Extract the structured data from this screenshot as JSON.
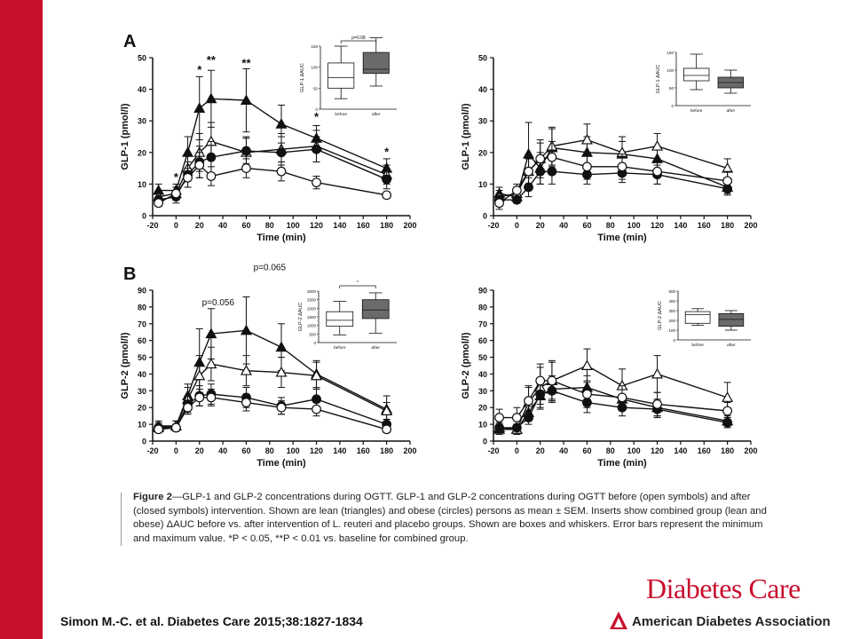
{
  "panel_a_label": "A",
  "panel_b_label": "B",
  "caption": {
    "fig": "Figure 2",
    "text": "—GLP-1 and GLP-2 concentrations during OGTT. GLP-1 and GLP-2 concentrations during OGTT before (open symbols) and after (closed symbols) intervention. Shown are lean (triangles) and obese (circles) persons as mean ± SEM. Inserts show combined group (lean and obese) ΔAUC before vs. after intervention of L. reuteri and placebo groups. Shown are boxes and whiskers. Error bars represent the minimum and maximum value. *P < 0.05, **P < 0.01 vs. baseline for combined group."
  },
  "citation": "Simon M.-C. et al. Diabetes Care 2015;38:1827-1834",
  "journal_logo": "Diabetes Care",
  "publisher": "American Diabetes Association",
  "colors": {
    "brand_red": "#c8102e",
    "line": "#111111",
    "box_dark": "#6b6b6b"
  },
  "chart_data": [
    {
      "id": "A-left",
      "type": "line",
      "xlabel": "Time (min)",
      "ylabel": "GLP-1 (pmol/l)",
      "xlim": [
        -20,
        200
      ],
      "ylim": [
        0,
        50
      ],
      "xticks": [
        -20,
        0,
        20,
        40,
        60,
        80,
        100,
        120,
        140,
        160,
        180,
        200
      ],
      "yticks": [
        0,
        10,
        20,
        30,
        40,
        50
      ],
      "x": [
        -15,
        0,
        10,
        20,
        30,
        60,
        90,
        120,
        180
      ],
      "series": [
        {
          "marker": "triangle-closed",
          "values": [
            8,
            8,
            20,
            34,
            37,
            36.5,
            29,
            24.5,
            15
          ],
          "err": [
            2,
            2,
            5,
            10,
            9,
            10,
            6,
            4,
            3
          ]
        },
        {
          "marker": "triangle-open",
          "values": [
            6,
            7,
            15,
            20,
            23.5,
            20,
            21,
            22,
            13
          ],
          "err": [
            2,
            2,
            4,
            6,
            6,
            5,
            5,
            5,
            3
          ]
        },
        {
          "marker": "circle-closed",
          "values": [
            5,
            6,
            13,
            17,
            18.5,
            20.5,
            20,
            21,
            11.5
          ],
          "err": [
            2,
            2,
            4,
            5,
            5,
            4,
            5,
            4,
            3
          ]
        },
        {
          "marker": "circle-open",
          "values": [
            4,
            7,
            12,
            16,
            12.5,
            15,
            14,
            10.5,
            6.5
          ],
          "err": [
            1,
            2,
            3,
            4,
            3,
            3,
            3,
            2,
            1
          ]
        }
      ],
      "annotations": [
        {
          "x": 0,
          "y": 11,
          "text": "*"
        },
        {
          "x": 20,
          "y": 45,
          "text": "*"
        },
        {
          "x": 30,
          "y": 48,
          "text": "**"
        },
        {
          "x": 60,
          "y": 47,
          "text": "**"
        },
        {
          "x": 120,
          "y": 30,
          "text": "*"
        },
        {
          "x": 180,
          "y": 19,
          "text": "*"
        }
      ],
      "inset": {
        "ylabel": "GLP-1 ΔAUC",
        "ylim": [
          0,
          150
        ],
        "yticks": [
          0,
          50,
          100,
          150
        ],
        "categories": [
          "before",
          "after"
        ],
        "pvalue": "p=0.08",
        "boxes": [
          {
            "min": 25,
            "q1": 50,
            "med": 75,
            "q3": 110,
            "max": 150
          },
          {
            "min": 55,
            "q1": 85,
            "med": 95,
            "q3": 135,
            "max": 170
          }
        ]
      }
    },
    {
      "id": "A-right",
      "type": "line",
      "xlabel": "Time (min)",
      "ylabel": "GLP-1 (pmol/l)",
      "xlim": [
        -20,
        200
      ],
      "ylim": [
        0,
        50
      ],
      "xticks": [
        -20,
        0,
        20,
        40,
        60,
        80,
        100,
        120,
        140,
        160,
        180,
        200
      ],
      "yticks": [
        0,
        10,
        20,
        30,
        40,
        50
      ],
      "x": [
        -15,
        0,
        10,
        20,
        30,
        60,
        90,
        120,
        180
      ],
      "series": [
        {
          "marker": "triangle-closed",
          "values": [
            7,
            6,
            19.5,
            15,
            21.5,
            20,
            19.5,
            18,
            9
          ],
          "err": [
            2,
            2,
            10,
            5,
            6,
            5,
            4,
            4,
            2
          ]
        },
        {
          "marker": "triangle-open",
          "values": [
            6,
            7,
            14,
            18,
            22,
            24,
            20,
            22,
            15
          ],
          "err": [
            2,
            2,
            4,
            6,
            6,
            5,
            5,
            4,
            3
          ]
        },
        {
          "marker": "circle-closed",
          "values": [
            5,
            5,
            9,
            14,
            14,
            13,
            13.5,
            13,
            8.5
          ],
          "err": [
            2,
            1,
            3,
            4,
            4,
            3,
            3,
            3,
            2
          ]
        },
        {
          "marker": "circle-open",
          "values": [
            4,
            8,
            14,
            18,
            18.5,
            15.5,
            15.5,
            14,
            11
          ],
          "err": [
            2,
            2,
            4,
            5,
            5,
            4,
            4,
            4,
            3
          ]
        }
      ],
      "inset": {
        "ylabel": "GLP-1 ΔAUC",
        "ylim": [
          0,
          150
        ],
        "yticks": [
          0,
          50,
          100,
          150
        ],
        "categories": [
          "before",
          "after"
        ],
        "boxes": [
          {
            "min": 45,
            "q1": 70,
            "med": 85,
            "q3": 105,
            "max": 145
          },
          {
            "min": 35,
            "q1": 50,
            "med": 65,
            "q3": 80,
            "max": 100
          }
        ]
      }
    },
    {
      "id": "B-left",
      "type": "line",
      "xlabel": "Time (min)",
      "ylabel": "GLP-2 (pmol/l)",
      "xlim": [
        -20,
        200
      ],
      "ylim": [
        0,
        90
      ],
      "xticks": [
        -20,
        0,
        20,
        40,
        60,
        80,
        100,
        120,
        140,
        160,
        180,
        200
      ],
      "yticks": [
        0,
        10,
        20,
        30,
        40,
        50,
        60,
        70,
        80,
        90
      ],
      "x": [
        -15,
        0,
        10,
        20,
        30,
        60,
        90,
        120,
        180
      ],
      "series": [
        {
          "marker": "triangle-closed",
          "values": [
            9,
            9,
            27,
            47,
            64,
            66,
            56,
            40,
            19
          ],
          "err": [
            3,
            3,
            7,
            20,
            15,
            20,
            14,
            8,
            8
          ]
        },
        {
          "marker": "triangle-open",
          "values": [
            8,
            9,
            25,
            39,
            46,
            42,
            41,
            39,
            18
          ],
          "err": [
            3,
            3,
            7,
            12,
            10,
            9,
            9,
            8,
            5
          ]
        },
        {
          "marker": "circle-closed",
          "values": [
            8,
            8,
            22,
            27,
            28,
            26,
            21,
            25,
            10
          ],
          "err": [
            2,
            2,
            5,
            6,
            6,
            6,
            5,
            6,
            3
          ]
        },
        {
          "marker": "circle-open",
          "values": [
            7,
            8,
            20,
            26,
            26,
            23,
            20,
            19,
            7
          ],
          "err": [
            2,
            2,
            4,
            5,
            5,
            5,
            4,
            4,
            2
          ]
        }
      ],
      "annotations": [
        {
          "x": 36,
          "y": 81,
          "text": "p=0.056"
        },
        {
          "x": 80,
          "y": 102,
          "text": "p=0.065"
        }
      ],
      "inset": {
        "ylabel": "GLP-2 ΔAUC",
        "ylim": [
          0,
          3000
        ],
        "yticks": [
          0,
          500,
          1000,
          1500,
          2000,
          2500,
          3000
        ],
        "categories": [
          "before",
          "after"
        ],
        "pvalue": "*",
        "boxes": [
          {
            "min": 450,
            "q1": 950,
            "med": 1300,
            "q3": 1800,
            "max": 2400
          },
          {
            "min": 550,
            "q1": 1400,
            "med": 1900,
            "q3": 2500,
            "max": 2900
          }
        ]
      }
    },
    {
      "id": "B-right",
      "type": "line",
      "xlabel": "Time (min)",
      "ylabel": "GLP-2 (pmol/l)",
      "xlim": [
        -20,
        200
      ],
      "ylim": [
        0,
        90
      ],
      "xticks": [
        -20,
        0,
        20,
        40,
        60,
        80,
        100,
        120,
        140,
        160,
        180,
        200
      ],
      "yticks": [
        0,
        10,
        20,
        30,
        40,
        50,
        60,
        70,
        80,
        90
      ],
      "x": [
        -15,
        0,
        10,
        20,
        30,
        60,
        90,
        120,
        180
      ],
      "series": [
        {
          "marker": "triangle-closed",
          "values": [
            7,
            7,
            17,
            27,
            31,
            32,
            25,
            20,
            12
          ],
          "err": [
            3,
            3,
            5,
            8,
            8,
            7,
            6,
            5,
            3
          ]
        },
        {
          "marker": "triangle-open",
          "values": [
            8,
            7,
            23,
            32,
            36,
            45,
            33,
            40,
            26
          ],
          "err": [
            3,
            3,
            10,
            12,
            12,
            10,
            10,
            11,
            9
          ]
        },
        {
          "marker": "circle-closed",
          "values": [
            8,
            8,
            14,
            28,
            30,
            23,
            20,
            19,
            11
          ],
          "err": [
            2,
            2,
            4,
            6,
            6,
            6,
            5,
            5,
            3
          ]
        },
        {
          "marker": "circle-open",
          "values": [
            14,
            14,
            24,
            36,
            36,
            28,
            26,
            22,
            18
          ],
          "err": [
            5,
            6,
            8,
            10,
            11,
            8,
            7,
            7,
            5
          ]
        }
      ],
      "inset": {
        "ylabel": "GLP-2 ΔAUC",
        "ylim": [
          0,
          500
        ],
        "yticks": [
          0,
          100,
          200,
          300,
          400,
          500
        ],
        "categories": [
          "before",
          "after"
        ],
        "boxes": [
          {
            "min": 150,
            "q1": 170,
            "med": 260,
            "q3": 290,
            "max": 320
          },
          {
            "min": 100,
            "q1": 140,
            "med": 210,
            "q3": 270,
            "max": 300
          }
        ]
      }
    }
  ]
}
